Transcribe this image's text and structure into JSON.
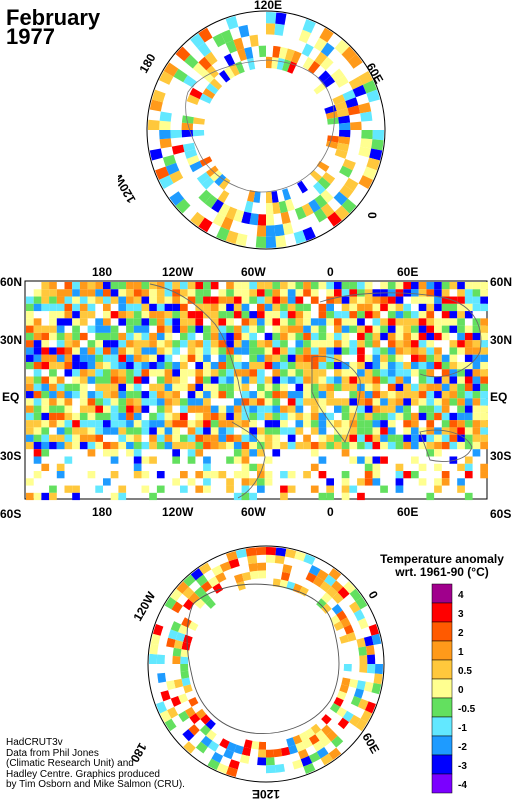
{
  "header": {
    "month": "February",
    "year": "1977"
  },
  "north_polar": {
    "labels": {
      "top": "120E",
      "upper_left": "180",
      "upper_right": "60E",
      "right": "0",
      "left": "120W"
    }
  },
  "global_map": {
    "top_lon_labels": [
      "180",
      "120W",
      "60W",
      "0",
      "60E"
    ],
    "bottom_lon_labels": [
      "180",
      "120W",
      "60W",
      "0",
      "60E"
    ],
    "lat_labels": [
      "60N",
      "30N",
      "EQ",
      "30S",
      "60S"
    ]
  },
  "south_polar": {
    "labels": {
      "upper_left": "120W",
      "right": "0",
      "left": "180",
      "lower_right": "60E",
      "bottom": "120E"
    }
  },
  "legend": {
    "title_line1": "Temperature anomaly",
    "title_line2": "wrt. 1961-90  (°C)",
    "ticks": [
      "4",
      "3",
      "2",
      "1",
      "0.5",
      "0",
      "-0.5",
      "-1",
      "-2",
      "-3",
      "-4"
    ],
    "colors": [
      "#a0008c",
      "#ff0000",
      "#ff5a00",
      "#ff9a1a",
      "#ffc83c",
      "#ffff90",
      "#63e05f",
      "#62e8ff",
      "#1e9bff",
      "#0000ff",
      "#7b00ff"
    ]
  },
  "credit": {
    "line1": "HadCRUT3v",
    "line2": "Data from Phil Jones",
    "line3": "(Climatic Research Unit) and",
    "line4": "Hadley Centre.  Graphics produced",
    "line5": "by Tim Osborn and Mike Salmon (CRU)."
  }
}
